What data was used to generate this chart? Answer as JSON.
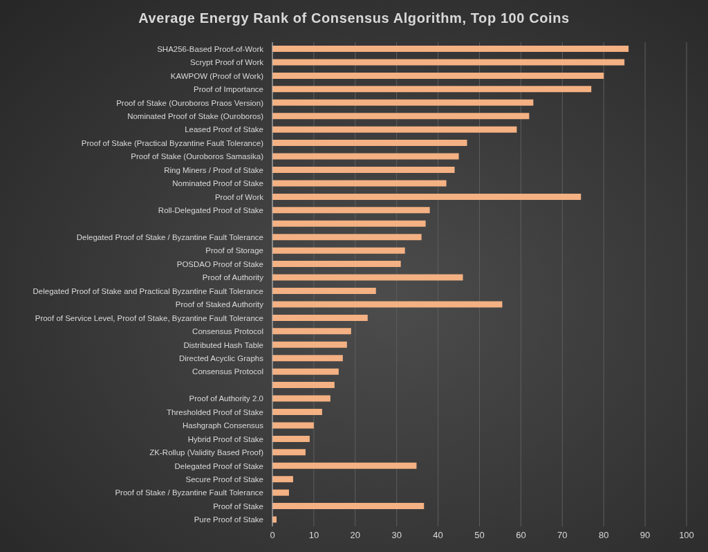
{
  "chart_data": {
    "type": "bar",
    "orientation": "horizontal",
    "title": "Average Energy Rank of Consensus Algorithm, Top 100 Coins",
    "categories": [
      "SHA256-Based Proof-of-Work",
      "Scrypt Proof of Work",
      "KAWPOW (Proof of Work)",
      "Proof of Importance",
      "Proof of Stake (Ouroboros Praos Version)",
      "Nominated Proof of Stake (Ouroboros)",
      "Leased Proof of Stake",
      "Proof of Stake (Practical Byzantine Fault Tolerance)",
      "Proof of Stake (Ouroboros Samasika)",
      "Ring Miners / Proof of Stake",
      "Nominated Proof of Stake",
      "Proof of Work",
      "Roll-Delegated Proof of Stake",
      null,
      "Delegated Proof of Stake / Byzantine Fault Tolerance",
      "Proof of Storage",
      "POSDAO Proof of Stake",
      "Proof of Authority",
      "Delegated Proof of Stake and Practical Byzantine Fault Tolerance",
      "Proof of Staked Authority",
      "Proof of Service Level, Proof of Stake, Byzantine Fault Tolerance",
      "Consensus Protocol",
      "Distributed Hash Table",
      "Directed Acyclic Graphs",
      "Consensus Protocol",
      null,
      "Proof of Authority 2.0",
      "Thresholded Proof of Stake",
      "Hashgraph Consensus",
      "Hybrid Proof of Stake",
      "ZK-Rollup (Validity Based Proof)",
      "Delegated Proof of Stake",
      "Secure Proof of Stake",
      "Proof of Stake / Byzantine Fault Tolerance",
      "Proof of Stake",
      "Pure Proof of Stake"
    ],
    "values": [
      86,
      85,
      80,
      77,
      63,
      62,
      59,
      47,
      45,
      44,
      42,
      74.5,
      38,
      37,
      36,
      32,
      31,
      46,
      25,
      55.5,
      23,
      19,
      18,
      17,
      16,
      15,
      14,
      12,
      10,
      9,
      8,
      34.8,
      5,
      4,
      36.6,
      1
    ],
    "color": "#f4b183",
    "xlim": [
      0,
      100
    ],
    "xticks": [
      0,
      10,
      20,
      30,
      40,
      50,
      60,
      70,
      80,
      90,
      100
    ],
    "grid": "x"
  }
}
